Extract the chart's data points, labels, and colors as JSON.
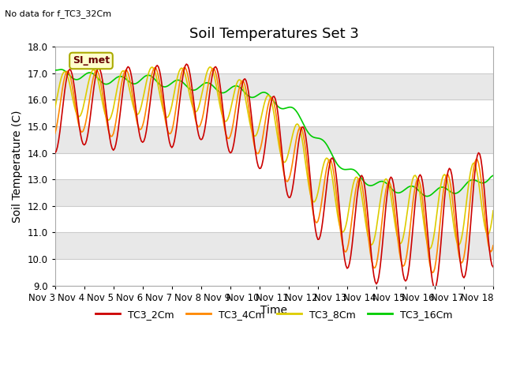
{
  "title": "Soil Temperatures Set 3",
  "subtitle": "No data for f_TC3_32Cm",
  "ylabel": "Soil Temperature (C)",
  "xlabel": "Time",
  "ylim": [
    9.0,
    18.0
  ],
  "yticks": [
    9.0,
    10.0,
    11.0,
    12.0,
    13.0,
    14.0,
    15.0,
    16.0,
    17.0,
    18.0
  ],
  "xtick_labels": [
    "Nov 3",
    "Nov 4",
    "Nov 5",
    "Nov 6",
    "Nov 7",
    "Nov 8",
    "Nov 9",
    "Nov 10",
    "Nov 11",
    "Nov 12",
    "Nov 13",
    "Nov 14",
    "Nov 15",
    "Nov 16",
    "Nov 17",
    "Nov 18"
  ],
  "series_colors": {
    "TC3_2Cm": "#cc0000",
    "TC3_4Cm": "#ff8800",
    "TC3_8Cm": "#ddcc00",
    "TC3_16Cm": "#00cc00"
  },
  "series_labels": [
    "TC3_2Cm",
    "TC3_4Cm",
    "TC3_8Cm",
    "TC3_16Cm"
  ],
  "legend_label": "SI_met",
  "legend_bg": "#ffffcc",
  "legend_border": "#aaaa00",
  "background_color": "#ffffff",
  "band_colors": [
    "#ffffff",
    "#e8e8e8"
  ],
  "grid_line_color": "#cccccc",
  "title_fontsize": 13,
  "axis_fontsize": 10,
  "tick_fontsize": 8.5,
  "line_width": 1.2
}
